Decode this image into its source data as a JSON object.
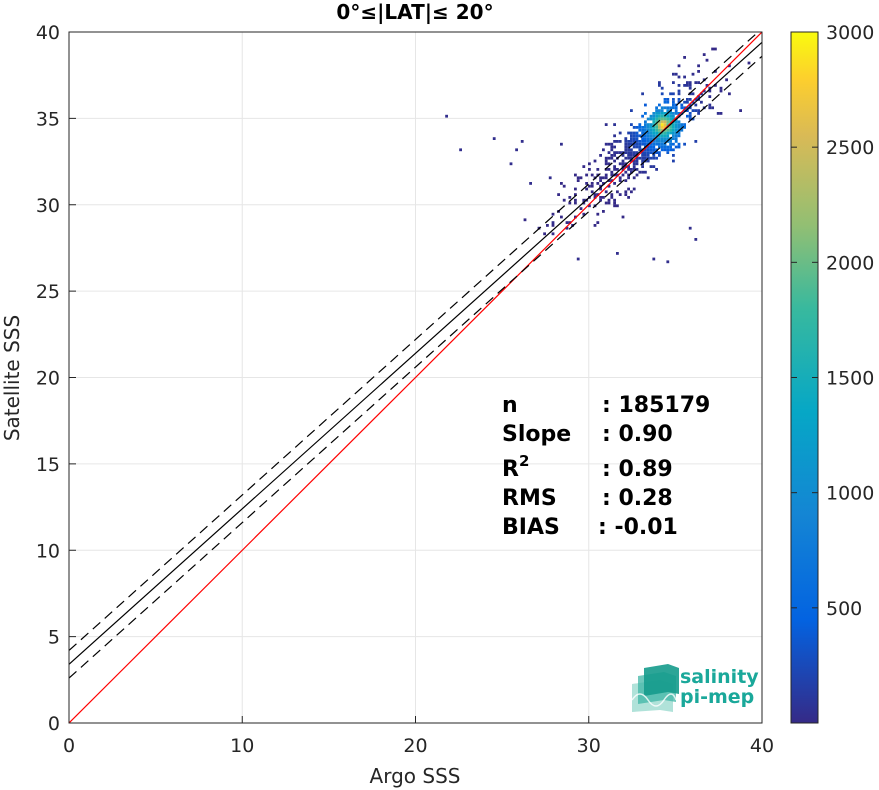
{
  "chart_data": {
    "type": "heatmap",
    "title": "0°≤|LAT|≤ 20°",
    "xlabel": "Argo SSS",
    "ylabel": "Satellite SSS",
    "xlim": [
      0,
      40
    ],
    "ylim": [
      0,
      40
    ],
    "x_ticks": [
      "0",
      "10",
      "20",
      "30",
      "40"
    ],
    "y_ticks": [
      "0",
      "5",
      "10",
      "15",
      "20",
      "25",
      "30",
      "35",
      "40"
    ],
    "grid": true,
    "density": {
      "description_points": [
        {
          "x": 34.3,
          "y": 34.6,
          "count": 3000
        },
        {
          "x": 34.0,
          "y": 34.2,
          "count": 2200
        },
        {
          "x": 33.6,
          "y": 33.8,
          "count": 1400
        },
        {
          "x": 33.0,
          "y": 33.2,
          "count": 800
        },
        {
          "x": 32.3,
          "y": 32.6,
          "count": 400
        },
        {
          "x": 31.5,
          "y": 31.8,
          "count": 150
        },
        {
          "x": 30.5,
          "y": 30.8,
          "count": 40
        },
        {
          "x": 29.5,
          "y": 29.7,
          "count": 10
        },
        {
          "x": 35.5,
          "y": 35.8,
          "count": 600
        },
        {
          "x": 36.3,
          "y": 36.6,
          "count": 150
        }
      ]
    },
    "lines": [
      {
        "name": "identity",
        "color": "#ff0000",
        "style": "solid",
        "slope": 1.0,
        "intercept": 0.0
      },
      {
        "name": "fit",
        "color": "#000000",
        "style": "solid",
        "slope": 0.9,
        "intercept": 3.4
      },
      {
        "name": "fit-upper",
        "color": "#000000",
        "style": "dashed",
        "slope": 0.9,
        "intercept": 4.2
      },
      {
        "name": "fit-lower",
        "color": "#000000",
        "style": "dashed",
        "slope": 0.9,
        "intercept": 2.6
      }
    ],
    "stats": [
      {
        "label": "n",
        "value": ": 185179"
      },
      {
        "label": "Slope",
        "value": ": 0.90"
      },
      {
        "label": "R",
        "sup": "2",
        "value": ": 0.89"
      },
      {
        "label": "RMS",
        "value": ": 0.28"
      },
      {
        "label": "BIAS",
        "value": ": -0.01"
      }
    ],
    "colorbar": {
      "min": 0,
      "max": 3000,
      "ticks": [
        "500",
        "1000",
        "1500",
        "2000",
        "2500",
        "3000"
      ],
      "colormap": "parula"
    }
  },
  "logo": {
    "line1": "salinity",
    "line2": "pi-mep",
    "color": "#1aa89a"
  }
}
